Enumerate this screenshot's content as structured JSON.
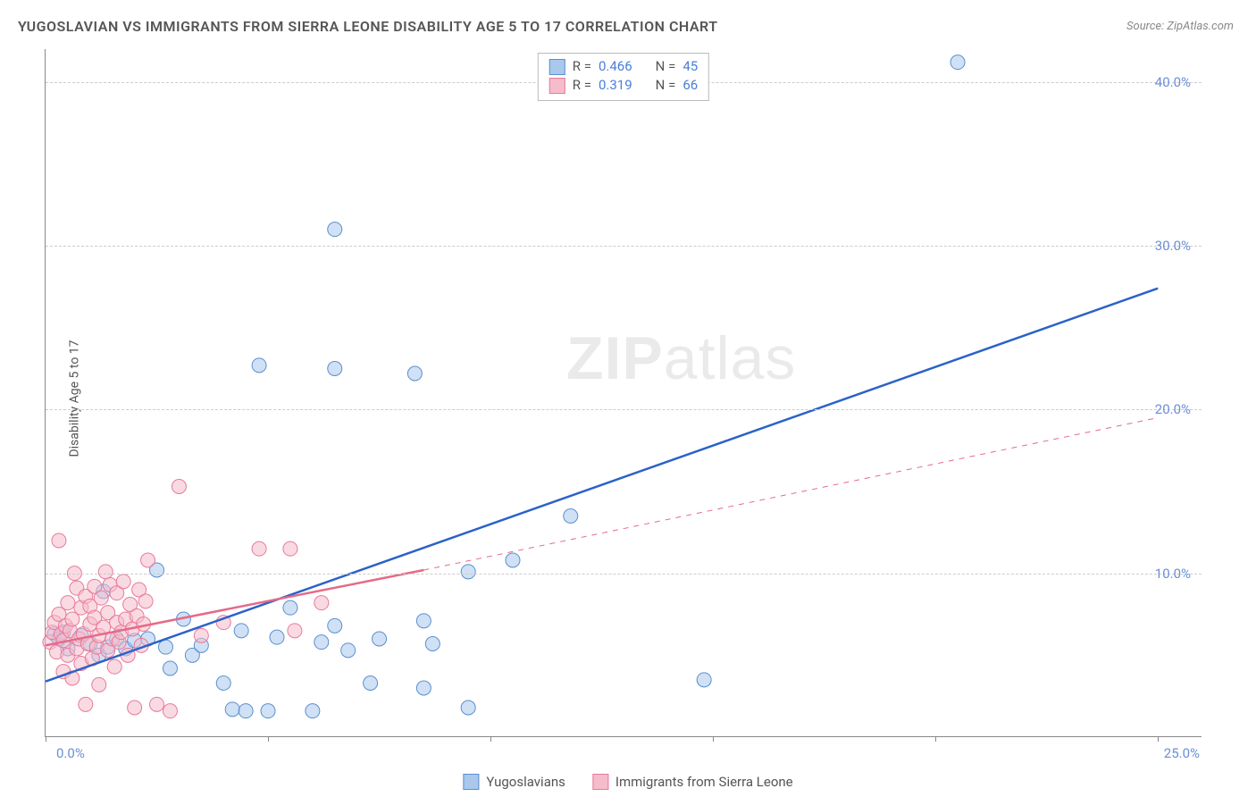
{
  "title": "YUGOSLAVIAN VS IMMIGRANTS FROM SIERRA LEONE DISABILITY AGE 5 TO 17 CORRELATION CHART",
  "source": "Source: ZipAtlas.com",
  "y_axis_title": "Disability Age 5 to 17",
  "watermark_bold": "ZIP",
  "watermark_light": "atlas",
  "chart": {
    "type": "scatter",
    "background_color": "#ffffff",
    "grid_color": "#cccccc",
    "axis_color": "#888888",
    "tick_label_color": "#6a8fd8",
    "xlim": [
      0,
      26
    ],
    "ylim": [
      0,
      42
    ],
    "y_ticks": [
      10,
      20,
      30,
      40
    ],
    "y_tick_labels": [
      "10.0%",
      "20.0%",
      "30.0%",
      "40.0%"
    ],
    "x_ticks": [
      0,
      5,
      10,
      15,
      20,
      25
    ],
    "x_tick_labels": {
      "0": "0.0%",
      "25": "25.0%"
    },
    "point_radius": 8,
    "point_opacity": 0.55,
    "line_width_solid": 2.5,
    "line_width_dashed": 1,
    "series": [
      {
        "name": "Yugoslavians",
        "color_fill": "#a9c8ec",
        "color_stroke": "#5a8fd0",
        "line_color": "#2a62c9",
        "R": "0.466",
        "N": "45",
        "points": [
          [
            0.2,
            6.3
          ],
          [
            0.3,
            6.0
          ],
          [
            0.4,
            6.4
          ],
          [
            0.5,
            5.4
          ],
          [
            1.3,
            8.9
          ],
          [
            0.8,
            6.2
          ],
          [
            1.0,
            5.7
          ],
          [
            1.2,
            5.0
          ],
          [
            1.4,
            5.5
          ],
          [
            1.6,
            6.0
          ],
          [
            1.8,
            5.4
          ],
          [
            2.0,
            5.9
          ],
          [
            2.3,
            6.0
          ],
          [
            2.5,
            10.2
          ],
          [
            2.7,
            5.5
          ],
          [
            2.8,
            4.2
          ],
          [
            3.1,
            7.2
          ],
          [
            3.3,
            5.0
          ],
          [
            3.5,
            5.6
          ],
          [
            4.0,
            3.3
          ],
          [
            4.2,
            1.7
          ],
          [
            4.4,
            6.5
          ],
          [
            4.5,
            1.6
          ],
          [
            4.8,
            22.7
          ],
          [
            5.0,
            1.6
          ],
          [
            5.2,
            6.1
          ],
          [
            5.5,
            7.9
          ],
          [
            6.0,
            1.6
          ],
          [
            6.2,
            5.8
          ],
          [
            6.5,
            6.8
          ],
          [
            6.8,
            5.3
          ],
          [
            6.5,
            22.5
          ],
          [
            6.5,
            31.0
          ],
          [
            7.3,
            3.3
          ],
          [
            7.5,
            6.0
          ],
          [
            8.5,
            7.1
          ],
          [
            8.5,
            3.0
          ],
          [
            8.7,
            5.7
          ],
          [
            8.3,
            22.2
          ],
          [
            9.5,
            10.1
          ],
          [
            9.5,
            1.8
          ],
          [
            10.5,
            10.8
          ],
          [
            11.8,
            13.5
          ],
          [
            14.8,
            3.5
          ],
          [
            20.5,
            41.2
          ]
        ],
        "trend_solid": {
          "x1": 0.0,
          "y1": 3.4,
          "x2": 25.0,
          "y2": 27.4
        }
      },
      {
        "name": "Immigrants from Sierra Leone",
        "color_fill": "#f6bccb",
        "color_stroke": "#e77a9a",
        "line_color": "#e56a88",
        "R": "0.319",
        "N": "66",
        "points": [
          [
            0.1,
            5.8
          ],
          [
            0.15,
            6.4
          ],
          [
            0.2,
            7.0
          ],
          [
            0.25,
            5.2
          ],
          [
            0.3,
            7.5
          ],
          [
            0.3,
            12.0
          ],
          [
            0.35,
            6.3
          ],
          [
            0.4,
            4.0
          ],
          [
            0.4,
            5.9
          ],
          [
            0.45,
            6.8
          ],
          [
            0.5,
            5.0
          ],
          [
            0.5,
            8.2
          ],
          [
            0.55,
            6.5
          ],
          [
            0.6,
            3.6
          ],
          [
            0.6,
            7.2
          ],
          [
            0.65,
            10.0
          ],
          [
            0.7,
            5.4
          ],
          [
            0.7,
            9.1
          ],
          [
            0.75,
            6.0
          ],
          [
            0.8,
            4.5
          ],
          [
            0.8,
            7.9
          ],
          [
            0.85,
            6.3
          ],
          [
            0.9,
            2.0
          ],
          [
            0.9,
            8.6
          ],
          [
            0.95,
            5.7
          ],
          [
            1.0,
            6.9
          ],
          [
            1.0,
            8.0
          ],
          [
            1.05,
            4.8
          ],
          [
            1.1,
            7.3
          ],
          [
            1.1,
            9.2
          ],
          [
            1.15,
            5.5
          ],
          [
            1.2,
            6.2
          ],
          [
            1.2,
            3.2
          ],
          [
            1.25,
            8.5
          ],
          [
            1.3,
            6.7
          ],
          [
            1.35,
            10.1
          ],
          [
            1.4,
            5.3
          ],
          [
            1.4,
            7.6
          ],
          [
            1.45,
            9.3
          ],
          [
            1.5,
            6.0
          ],
          [
            1.55,
            4.3
          ],
          [
            1.6,
            7.0
          ],
          [
            1.6,
            8.8
          ],
          [
            1.65,
            5.8
          ],
          [
            1.7,
            6.4
          ],
          [
            1.75,
            9.5
          ],
          [
            1.8,
            7.2
          ],
          [
            1.85,
            5.0
          ],
          [
            1.9,
            8.1
          ],
          [
            1.95,
            6.6
          ],
          [
            2.0,
            1.8
          ],
          [
            2.05,
            7.4
          ],
          [
            2.1,
            9.0
          ],
          [
            2.15,
            5.6
          ],
          [
            2.2,
            6.9
          ],
          [
            2.25,
            8.3
          ],
          [
            2.3,
            10.8
          ],
          [
            2.5,
            2.0
          ],
          [
            2.8,
            1.6
          ],
          [
            3.0,
            15.3
          ],
          [
            3.5,
            6.2
          ],
          [
            4.0,
            7.0
          ],
          [
            4.8,
            11.5
          ],
          [
            5.5,
            11.5
          ],
          [
            5.6,
            6.5
          ],
          [
            6.2,
            8.2
          ]
        ],
        "trend_solid": {
          "x1": 0.0,
          "y1": 5.6,
          "x2": 8.5,
          "y2": 10.2
        },
        "trend_dashed": {
          "x1": 8.5,
          "y1": 10.2,
          "x2": 25.0,
          "y2": 19.5
        }
      }
    ]
  },
  "stat_legend": {
    "r_label": "R =",
    "n_label": "N ="
  },
  "bottom_legend": {
    "items": [
      "Yugoslavians",
      "Immigrants from Sierra Leone"
    ]
  }
}
